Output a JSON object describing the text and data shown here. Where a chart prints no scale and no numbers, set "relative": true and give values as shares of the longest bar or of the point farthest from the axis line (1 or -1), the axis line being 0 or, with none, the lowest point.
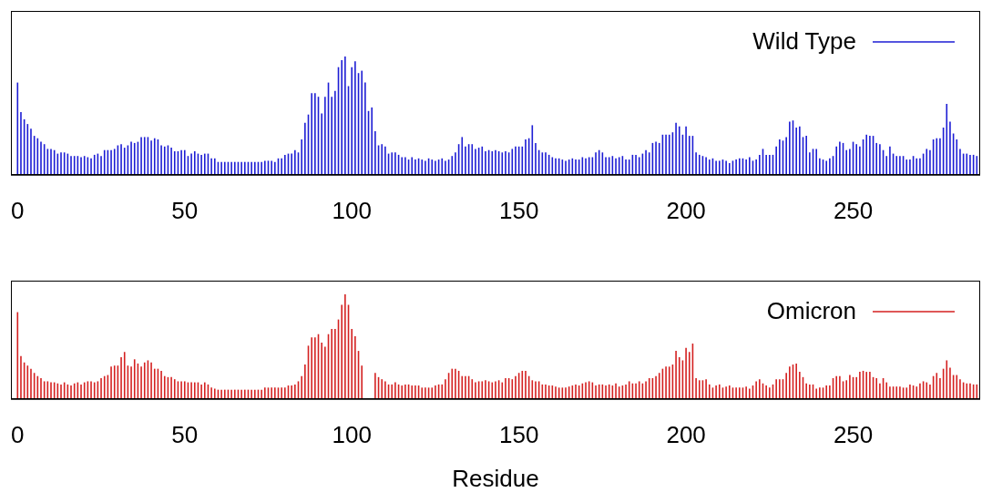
{
  "chart_data": [
    {
      "type": "bar",
      "relative": true,
      "legend": "top right",
      "tick_labels": "x",
      "xlim": [
        -2,
        288
      ],
      "xticks": [
        0,
        50,
        100,
        150,
        200,
        250
      ],
      "x": [
        0,
        1,
        2,
        3,
        4,
        5,
        6,
        7,
        8,
        9,
        10,
        11,
        12,
        13,
        14,
        15,
        16,
        17,
        18,
        19,
        20,
        21,
        22,
        23,
        24,
        25,
        26,
        27,
        28,
        29,
        30,
        31,
        32,
        33,
        34,
        35,
        36,
        37,
        38,
        39,
        40,
        41,
        42,
        43,
        44,
        45,
        46,
        47,
        48,
        49,
        50,
        51,
        52,
        53,
        54,
        55,
        56,
        57,
        58,
        59,
        60,
        61,
        62,
        63,
        64,
        65,
        66,
        67,
        68,
        69,
        70,
        71,
        72,
        73,
        74,
        75,
        76,
        77,
        78,
        79,
        80,
        81,
        82,
        83,
        84,
        85,
        86,
        87,
        88,
        89,
        90,
        91,
        92,
        93,
        94,
        95,
        96,
        97,
        98,
        99,
        100,
        101,
        102,
        103,
        104,
        105,
        106,
        107,
        108,
        109,
        110,
        111,
        112,
        113,
        114,
        115,
        116,
        117,
        118,
        119,
        120,
        121,
        122,
        123,
        124,
        125,
        126,
        127,
        128,
        129,
        130,
        131,
        132,
        133,
        134,
        135,
        136,
        137,
        138,
        139,
        140,
        141,
        142,
        143,
        144,
        145,
        146,
        147,
        148,
        149,
        150,
        151,
        152,
        153,
        154,
        155,
        156,
        157,
        158,
        159,
        160,
        161,
        162,
        163,
        164,
        165,
        166,
        167,
        168,
        169,
        170,
        171,
        172,
        173,
        174,
        175,
        176,
        177,
        178,
        179,
        180,
        181,
        182,
        183,
        184,
        185,
        186,
        187,
        188,
        189,
        190,
        191,
        192,
        193,
        194,
        195,
        196,
        197,
        198,
        199,
        200,
        201,
        202,
        203,
        204,
        205,
        206,
        207,
        208,
        209,
        210,
        211,
        212,
        213,
        214,
        215,
        216,
        217,
        218,
        219,
        220,
        221,
        222,
        223,
        224,
        225,
        226,
        227,
        228,
        229,
        230,
        231,
        232,
        233,
        234,
        235,
        236,
        237,
        238,
        239,
        240,
        241,
        242,
        243,
        244,
        245,
        246,
        247,
        248,
        249,
        250,
        251,
        252,
        253,
        254,
        255,
        256,
        257,
        258,
        259,
        260,
        261,
        262,
        263,
        264,
        265,
        266,
        267,
        268,
        269,
        270,
        271,
        272,
        273,
        274,
        275,
        276,
        277,
        278,
        279,
        280,
        281,
        282,
        283,
        284,
        285,
        286,
        287
      ],
      "series": [
        {
          "name": "Wild Type",
          "color": "#1c1cd4",
          "values": [
            0.78,
            0.53,
            0.47,
            0.43,
            0.39,
            0.33,
            0.31,
            0.28,
            0.26,
            0.22,
            0.22,
            0.21,
            0.18,
            0.19,
            0.19,
            0.18,
            0.16,
            0.16,
            0.16,
            0.15,
            0.16,
            0.15,
            0.14,
            0.17,
            0.18,
            0.16,
            0.21,
            0.21,
            0.21,
            0.22,
            0.25,
            0.26,
            0.23,
            0.25,
            0.28,
            0.27,
            0.28,
            0.32,
            0.32,
            0.32,
            0.29,
            0.31,
            0.3,
            0.25,
            0.24,
            0.25,
            0.23,
            0.2,
            0.2,
            0.21,
            0.21,
            0.16,
            0.18,
            0.2,
            0.18,
            0.17,
            0.18,
            0.18,
            0.14,
            0.14,
            0.11,
            0.11,
            0.11,
            0.11,
            0.11,
            0.11,
            0.11,
            0.11,
            0.11,
            0.11,
            0.11,
            0.11,
            0.11,
            0.11,
            0.12,
            0.12,
            0.12,
            0.11,
            0.14,
            0.14,
            0.17,
            0.18,
            0.18,
            0.21,
            0.19,
            0.3,
            0.44,
            0.51,
            0.69,
            0.69,
            0.66,
            0.52,
            0.66,
            0.78,
            0.66,
            0.71,
            0.91,
            0.97,
            1,
            0.75,
            0.91,
            0.96,
            0.86,
            0.88,
            0.78,
            0.54,
            0.57,
            0.37,
            0.25,
            0.26,
            0.24,
            0.18,
            0.19,
            0.19,
            0.17,
            0.15,
            0.15,
            0.13,
            0.15,
            0.13,
            0.14,
            0.13,
            0.12,
            0.14,
            0.13,
            0.12,
            0.13,
            0.14,
            0.12,
            0.13,
            0.16,
            0.19,
            0.26,
            0.32,
            0.24,
            0.26,
            0.26,
            0.22,
            0.23,
            0.24,
            0.2,
            0.21,
            0.2,
            0.21,
            0.2,
            0.19,
            0.2,
            0.19,
            0.22,
            0.24,
            0.24,
            0.24,
            0.3,
            0.31,
            0.42,
            0.27,
            0.21,
            0.19,
            0.19,
            0.17,
            0.15,
            0.14,
            0.14,
            0.13,
            0.12,
            0.13,
            0.14,
            0.13,
            0.13,
            0.15,
            0.14,
            0.15,
            0.15,
            0.19,
            0.21,
            0.19,
            0.15,
            0.15,
            0.16,
            0.14,
            0.15,
            0.16,
            0.13,
            0.13,
            0.17,
            0.17,
            0.15,
            0.18,
            0.21,
            0.19,
            0.27,
            0.28,
            0.27,
            0.34,
            0.34,
            0.34,
            0.36,
            0.44,
            0.41,
            0.34,
            0.41,
            0.33,
            0.33,
            0.19,
            0.17,
            0.16,
            0.15,
            0.13,
            0.14,
            0.12,
            0.12,
            0.13,
            0.12,
            0.1,
            0.12,
            0.13,
            0.14,
            0.14,
            0.13,
            0.15,
            0.12,
            0.13,
            0.17,
            0.22,
            0.17,
            0.17,
            0.17,
            0.24,
            0.3,
            0.29,
            0.32,
            0.45,
            0.46,
            0.4,
            0.41,
            0.32,
            0.33,
            0.19,
            0.22,
            0.22,
            0.14,
            0.13,
            0.12,
            0.14,
            0.16,
            0.24,
            0.28,
            0.27,
            0.21,
            0.22,
            0.28,
            0.26,
            0.24,
            0.3,
            0.34,
            0.33,
            0.33,
            0.27,
            0.26,
            0.21,
            0.16,
            0.24,
            0.18,
            0.16,
            0.16,
            0.16,
            0.13,
            0.13,
            0.16,
            0.14,
            0.14,
            0.18,
            0.22,
            0.21,
            0.3,
            0.31,
            0.31,
            0.4,
            0.6,
            0.45,
            0.35,
            0.3,
            0.22,
            0.18,
            0.18,
            0.17,
            0.17,
            0.16
          ]
        }
      ]
    },
    {
      "type": "bar",
      "relative": true,
      "legend": "top right",
      "tick_labels": "x",
      "xlabel": "Residue",
      "xlim": [
        -2,
        288
      ],
      "xticks": [
        0,
        50,
        100,
        150,
        200,
        250
      ],
      "x": [
        0,
        1,
        2,
        3,
        4,
        5,
        6,
        7,
        8,
        9,
        10,
        11,
        12,
        13,
        14,
        15,
        16,
        17,
        18,
        19,
        20,
        21,
        22,
        23,
        24,
        25,
        26,
        27,
        28,
        29,
        30,
        31,
        32,
        33,
        34,
        35,
        36,
        37,
        38,
        39,
        40,
        41,
        42,
        43,
        44,
        45,
        46,
        47,
        48,
        49,
        50,
        51,
        52,
        53,
        54,
        55,
        56,
        57,
        58,
        59,
        60,
        61,
        62,
        63,
        64,
        65,
        66,
        67,
        68,
        69,
        70,
        71,
        72,
        73,
        74,
        75,
        76,
        77,
        78,
        79,
        80,
        81,
        82,
        83,
        84,
        85,
        86,
        87,
        88,
        89,
        90,
        91,
        92,
        93,
        94,
        95,
        96,
        97,
        98,
        99,
        100,
        101,
        102,
        103,
        104,
        105,
        106,
        107,
        108,
        109,
        110,
        111,
        112,
        113,
        114,
        115,
        116,
        117,
        118,
        119,
        120,
        121,
        122,
        123,
        124,
        125,
        126,
        127,
        128,
        129,
        130,
        131,
        132,
        133,
        134,
        135,
        136,
        137,
        138,
        139,
        140,
        141,
        142,
        143,
        144,
        145,
        146,
        147,
        148,
        149,
        150,
        151,
        152,
        153,
        154,
        155,
        156,
        157,
        158,
        159,
        160,
        161,
        162,
        163,
        164,
        165,
        166,
        167,
        168,
        169,
        170,
        171,
        172,
        173,
        174,
        175,
        176,
        177,
        178,
        179,
        180,
        181,
        182,
        183,
        184,
        185,
        186,
        187,
        188,
        189,
        190,
        191,
        192,
        193,
        194,
        195,
        196,
        197,
        198,
        199,
        200,
        201,
        202,
        203,
        204,
        205,
        206,
        207,
        208,
        209,
        210,
        211,
        212,
        213,
        214,
        215,
        216,
        217,
        218,
        219,
        220,
        221,
        222,
        223,
        224,
        225,
        226,
        227,
        228,
        229,
        230,
        231,
        232,
        233,
        234,
        235,
        236,
        237,
        238,
        239,
        240,
        241,
        242,
        243,
        244,
        245,
        246,
        247,
        248,
        249,
        250,
        251,
        252,
        253,
        254,
        255,
        256,
        257,
        258,
        259,
        260,
        261,
        262,
        263,
        264,
        265,
        266,
        267,
        268,
        269,
        270,
        271,
        272,
        273,
        274,
        275,
        276,
        277,
        278,
        279,
        280,
        281,
        282,
        283,
        284,
        285,
        286,
        287
      ],
      "series": [
        {
          "name": "Omicron",
          "color": "#d42020",
          "values": [
            0.83,
            0.41,
            0.35,
            0.32,
            0.29,
            0.25,
            0.22,
            0.2,
            0.17,
            0.17,
            0.16,
            0.16,
            0.15,
            0.14,
            0.16,
            0.14,
            0.13,
            0.15,
            0.16,
            0.14,
            0.16,
            0.17,
            0.17,
            0.16,
            0.17,
            0.2,
            0.22,
            0.23,
            0.31,
            0.32,
            0.32,
            0.4,
            0.45,
            0.32,
            0.31,
            0.38,
            0.34,
            0.31,
            0.35,
            0.37,
            0.35,
            0.29,
            0.29,
            0.27,
            0.22,
            0.21,
            0.21,
            0.19,
            0.17,
            0.17,
            0.17,
            0.16,
            0.16,
            0.16,
            0.16,
            0.14,
            0.16,
            0.14,
            0.11,
            0.1,
            0.09,
            0.09,
            0.09,
            0.09,
            0.09,
            0.09,
            0.09,
            0.09,
            0.09,
            0.09,
            0.09,
            0.09,
            0.09,
            0.09,
            0.11,
            0.11,
            0.11,
            0.11,
            0.11,
            0.11,
            0.11,
            0.13,
            0.13,
            0.14,
            0.17,
            0.22,
            0.33,
            0.51,
            0.59,
            0.59,
            0.62,
            0.54,
            0.5,
            0.62,
            0.67,
            0.67,
            0.76,
            0.9,
            1,
            0.9,
            0.67,
            0.6,
            0.46,
            0.32,
            null,
            null,
            null,
            0.25,
            0.21,
            0.19,
            0.17,
            0.14,
            0.14,
            0.16,
            0.14,
            0.13,
            0.14,
            0.14,
            0.13,
            0.13,
            0.13,
            0.11,
            0.11,
            0.11,
            0.11,
            0.13,
            0.14,
            0.14,
            0.19,
            0.25,
            0.29,
            0.29,
            0.27,
            0.22,
            0.22,
            0.22,
            0.19,
            0.16,
            0.17,
            0.17,
            0.18,
            0.17,
            0.16,
            0.17,
            0.18,
            0.16,
            0.2,
            0.2,
            0.19,
            0.22,
            0.25,
            0.27,
            0.27,
            0.22,
            0.18,
            0.17,
            0.17,
            0.14,
            0.14,
            0.13,
            0.13,
            0.12,
            0.11,
            0.11,
            0.11,
            0.12,
            0.13,
            0.14,
            0.13,
            0.15,
            0.16,
            0.17,
            0.16,
            0.13,
            0.14,
            0.14,
            0.13,
            0.14,
            0.13,
            0.15,
            0.12,
            0.13,
            0.14,
            0.17,
            0.15,
            0.15,
            0.17,
            0.15,
            0.17,
            0.2,
            0.2,
            0.22,
            0.25,
            0.29,
            0.31,
            0.31,
            0.33,
            0.46,
            0.4,
            0.37,
            0.49,
            0.45,
            0.53,
            0.2,
            0.18,
            0.18,
            0.19,
            0.14,
            0.11,
            0.13,
            0.14,
            0.11,
            0.12,
            0.13,
            0.11,
            0.11,
            0.11,
            0.11,
            0.12,
            0.1,
            0.13,
            0.17,
            0.19,
            0.15,
            0.13,
            0.11,
            0.14,
            0.19,
            0.19,
            0.19,
            0.25,
            0.31,
            0.33,
            0.34,
            0.26,
            0.21,
            0.15,
            0.14,
            0.14,
            0.1,
            0.11,
            0.11,
            0.13,
            0.13,
            0.2,
            0.22,
            0.22,
            0.17,
            0.18,
            0.23,
            0.21,
            0.21,
            0.26,
            0.27,
            0.26,
            0.26,
            0.21,
            0.2,
            0.15,
            0.2,
            0.16,
            0.12,
            0.12,
            0.12,
            0.12,
            0.11,
            0.11,
            0.14,
            0.13,
            0.12,
            0.15,
            0.17,
            0.16,
            0.14,
            0.22,
            0.25,
            0.2,
            0.29,
            0.37,
            0.3,
            0.23,
            0.23,
            0.19,
            0.16,
            0.15,
            0.15,
            0.14,
            0.14
          ]
        }
      ]
    }
  ]
}
